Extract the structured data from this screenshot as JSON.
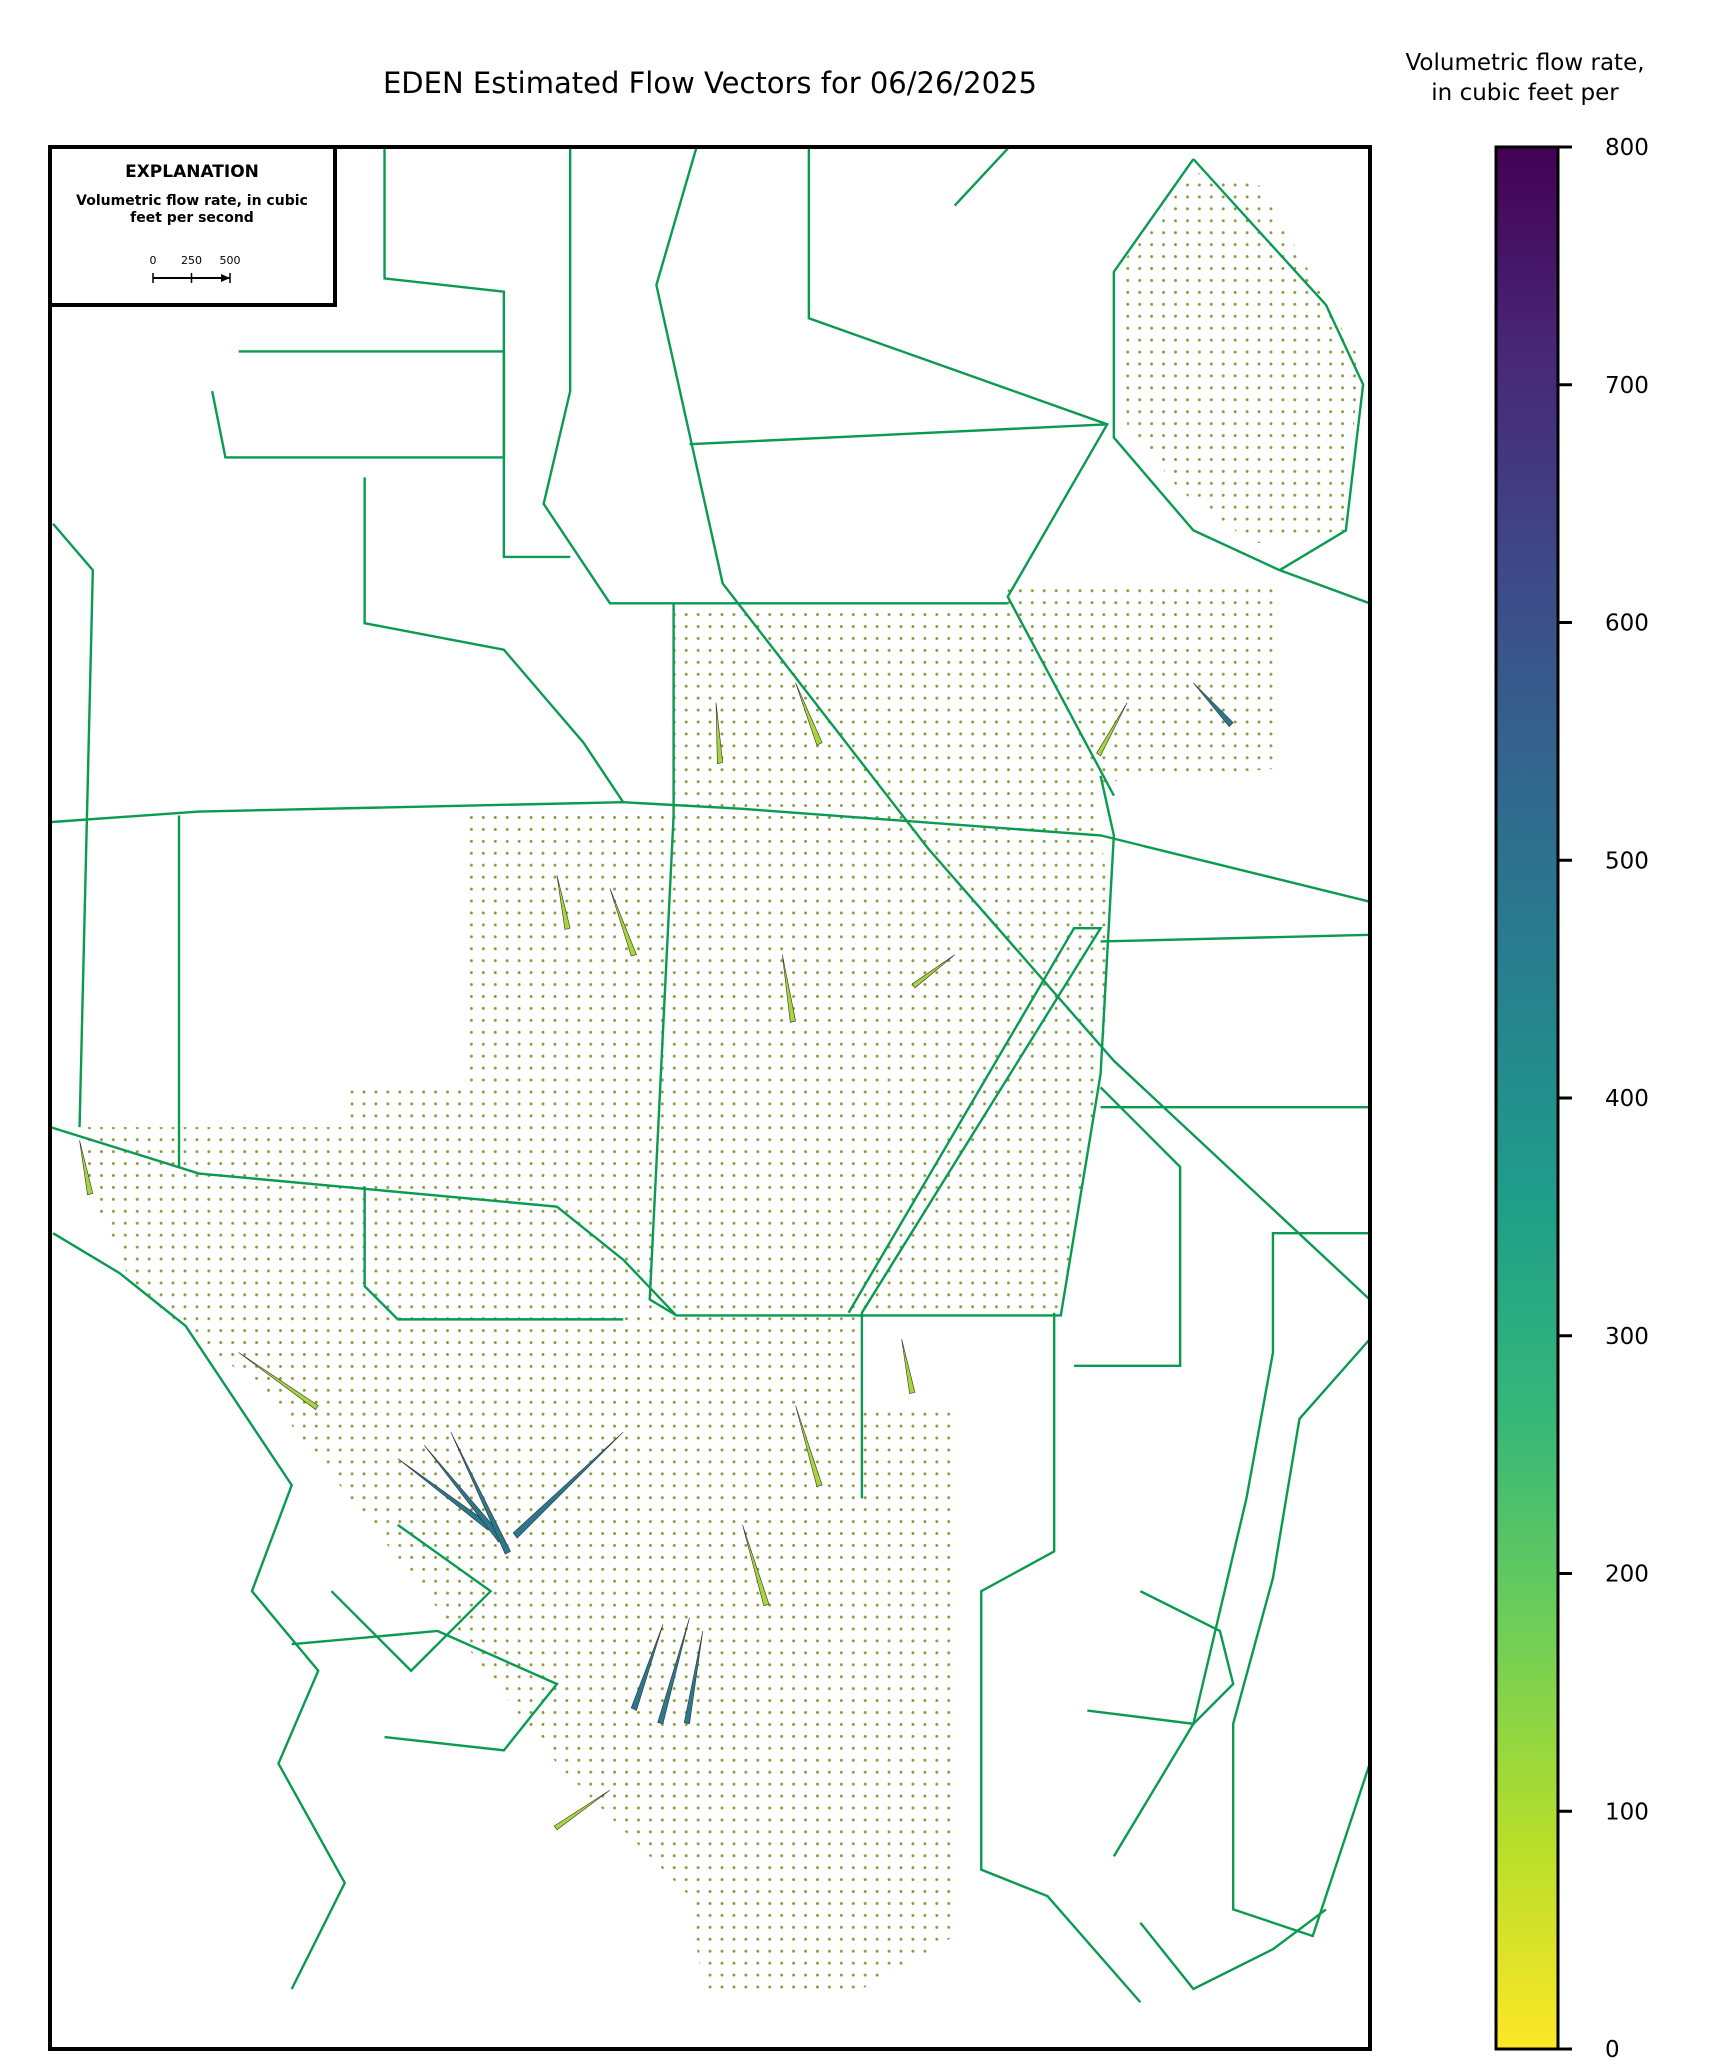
{
  "title": "EDEN Estimated Flow Vectors for 06/26/2025",
  "explanation": {
    "title": "EXPLANATION",
    "label": "Volumetric flow rate, in cubic feet per second",
    "scale_ticks": [
      0,
      250,
      500
    ]
  },
  "colorbar": {
    "label": "Volumetric flow rate, in cubic feet per second",
    "lim": [
      0,
      800
    ],
    "ticks": [
      0,
      100,
      200,
      300,
      400,
      500,
      600,
      700,
      800
    ],
    "colors": [
      "#fde725",
      "#b5de2b",
      "#6ece58",
      "#35b779",
      "#1f9e89",
      "#26828e",
      "#31688e",
      "#3e4989",
      "#482878",
      "#440154"
    ]
  }
}
